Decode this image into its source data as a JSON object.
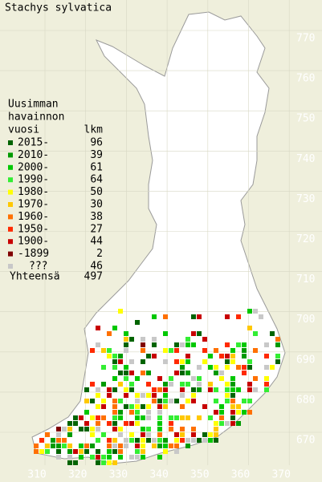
{
  "title": "Stachys sylvatica",
  "legend": {
    "heading": [
      "Uusimman",
      "havainnon",
      "vuosi"
    ],
    "count_heading": "lkm",
    "rows": [
      {
        "label": "2015-",
        "count": 96,
        "color": "#006400"
      },
      {
        "label": "2010-",
        "count": 39,
        "color": "#009a00"
      },
      {
        "label": "2000-",
        "count": 61,
        "color": "#00c800"
      },
      {
        "label": "1990-",
        "count": 64,
        "color": "#33ee33"
      },
      {
        "label": "1980-",
        "count": 50,
        "color": "#ffff00"
      },
      {
        "label": "1970-",
        "count": 30,
        "color": "#ffc800"
      },
      {
        "label": "1960-",
        "count": 38,
        "color": "#ff7000"
      },
      {
        "label": "1950-",
        "count": 27,
        "color": "#ff2a00"
      },
      {
        "label": "1900-",
        "count": 44,
        "color": "#c80000"
      },
      {
        "label": "-1899",
        "count": 2,
        "color": "#800000"
      },
      {
        "label": "???",
        "count": 46,
        "color": "#c8c8c8"
      }
    ],
    "total_label": "Yhteensä",
    "total": 497
  },
  "grid": {
    "y_labels": [
      770,
      760,
      750,
      740,
      730,
      720,
      710,
      700,
      690,
      680,
      670
    ],
    "x_labels": [
      310,
      320,
      330,
      340,
      350,
      360,
      370
    ]
  }
}
